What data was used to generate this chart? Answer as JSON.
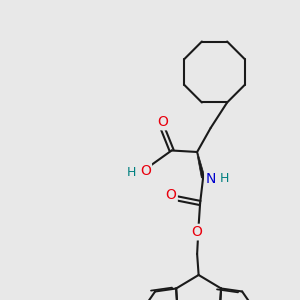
{
  "bg_color": "#e8e8e8",
  "bond_color": "#1a1a1a",
  "bond_lw": 1.5,
  "atom_colors": {
    "O": "#e8000d",
    "N": "#0000cd",
    "H_on_N": "#008080",
    "C": "#1a1a1a"
  },
  "font_size": 9
}
